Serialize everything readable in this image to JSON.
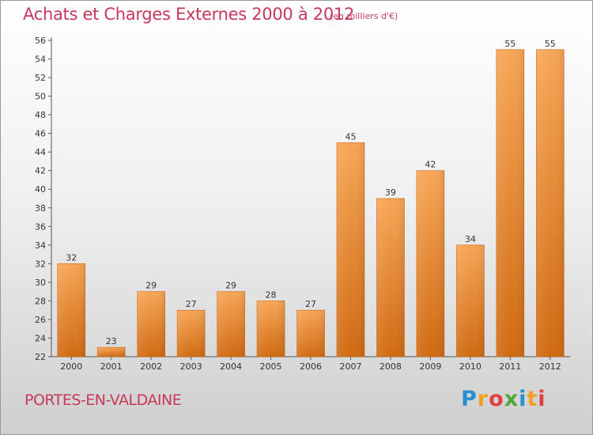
{
  "header": {
    "title": "Achats et Charges Externes 2000 à 2012",
    "subtitle": "(en milliers d'€)"
  },
  "footer": {
    "commune": "PORTES-EN-VALDAINE",
    "logo_text": "Proxiti",
    "logo_colors": [
      "#2a8fd0",
      "#f0a020",
      "#e04040",
      "#4aa83a"
    ]
  },
  "colors": {
    "bar_light": "#f6a452",
    "bar_dark": "#d26d14",
    "title": "#c8385a"
  },
  "chart_data": {
    "type": "bar",
    "title": "Achats et Charges Externes 2000 à 2012",
    "subtitle": "(en milliers d'€)",
    "categories": [
      "2000",
      "2001",
      "2002",
      "2003",
      "2004",
      "2005",
      "2006",
      "2007",
      "2008",
      "2009",
      "2010",
      "2011",
      "2012"
    ],
    "values": [
      32,
      23,
      29,
      27,
      29,
      28,
      27,
      45,
      39,
      42,
      34,
      55,
      55
    ],
    "ylim": [
      22,
      56
    ],
    "yticks": [
      22,
      24,
      26,
      28,
      30,
      32,
      34,
      36,
      38,
      40,
      42,
      44,
      46,
      48,
      50,
      52,
      54,
      56
    ],
    "grid": false,
    "legend": "none"
  }
}
